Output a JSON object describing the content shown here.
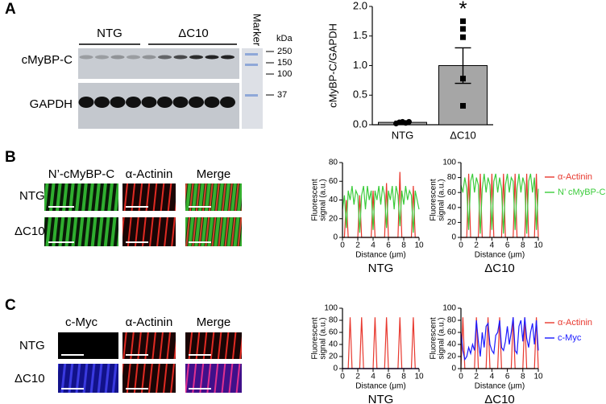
{
  "panel_labels": [
    "A",
    "B",
    "C"
  ],
  "blot": {
    "groups": [
      "NTG",
      "ΔC10"
    ],
    "marker": "Marker",
    "rows": [
      "cMyBP-C",
      "GAPDH"
    ],
    "unit": "kDa",
    "sizes": [
      "250",
      "150",
      "100",
      "37"
    ]
  },
  "image_panels": [
    {
      "columns": [
        "N’-cMyBP-C",
        "α-Actinin",
        "Merge"
      ],
      "rows": [
        "NTG",
        "ΔC10"
      ]
    },
    {
      "columns": [
        "c-Myc",
        "α-Actinin",
        "Merge"
      ],
      "rows": [
        "NTG",
        "ΔC10"
      ]
    }
  ],
  "chart_data": [
    {
      "type": "bar",
      "ylabel": "cMyBP-C/GAPDH",
      "categories": [
        "NTG",
        "ΔC10"
      ],
      "values": [
        0.04,
        1.0
      ],
      "errors": [
        0.02,
        0.3
      ],
      "points": [
        [
          0.02,
          0.04,
          0.05,
          0.03,
          0.05
        ],
        [
          1.75,
          1.62,
          1.48,
          0.78,
          0.32
        ]
      ],
      "markers": [
        "circle",
        "square"
      ],
      "color": "#a6a6a6",
      "ylim": [
        0,
        2
      ],
      "yticks": [
        {
          "value": 0,
          "label": "0.0"
        },
        0.5,
        {
          "value": 1,
          "label": "1.0"
        },
        1.5,
        {
          "value": 2,
          "label": "2.0"
        }
      ],
      "annotation": "*"
    },
    {
      "type": "line",
      "xlabel": "Distance (μm)",
      "ylabel": [
        "Fluorescent",
        "signal (a.u.)"
      ],
      "caption": "NTG",
      "legend": false,
      "x": [
        0,
        0.25,
        0.5,
        0.75,
        1,
        1.25,
        1.5,
        1.75,
        2,
        2.25,
        2.5,
        2.75,
        3,
        3.25,
        3.5,
        3.75,
        4,
        4.25,
        4.5,
        4.75,
        5,
        5.25,
        5.5,
        5.75,
        6,
        6.25,
        6.5,
        6.75,
        7,
        7.25,
        7.5,
        7.75,
        8,
        8.25,
        8.5,
        8.75,
        9,
        9.25,
        9.5,
        9.75,
        10
      ],
      "xlim": [
        0,
        10
      ],
      "xticks": [
        0,
        2,
        4,
        6,
        8,
        10
      ],
      "ylim": [
        0,
        80
      ],
      "yticks": [
        0,
        20,
        40,
        60,
        80
      ],
      "series": [
        {
          "color": "#e8382e",
          "values": [
            0,
            0,
            40,
            0,
            0,
            0,
            0,
            0,
            0,
            45,
            0,
            0,
            0,
            0,
            0,
            0,
            50,
            0,
            0,
            0,
            0,
            0,
            0,
            58,
            0,
            0,
            0,
            0,
            0,
            0,
            70,
            0,
            0,
            0,
            0,
            0,
            0,
            55,
            0,
            0,
            0
          ]
        },
        {
          "color": "#3ccc3c",
          "values": [
            30,
            45,
            10,
            50,
            40,
            55,
            35,
            50,
            45,
            5,
            45,
            55,
            30,
            55,
            40,
            50,
            8,
            50,
            40,
            55,
            35,
            55,
            45,
            10,
            50,
            40,
            55,
            30,
            55,
            45,
            12,
            50,
            35,
            55,
            40,
            50,
            45,
            5,
            50,
            40,
            30
          ]
        }
      ]
    },
    {
      "type": "line",
      "xlabel": "Distance (μm)",
      "ylabel": [
        "Fluorescent",
        "signal (a.u.)"
      ],
      "caption": "ΔC10",
      "legend": true,
      "x": [
        0,
        0.25,
        0.5,
        0.75,
        1,
        1.25,
        1.5,
        1.75,
        2,
        2.25,
        2.5,
        2.75,
        3,
        3.25,
        3.5,
        3.75,
        4,
        4.25,
        4.5,
        4.75,
        5,
        5.25,
        5.5,
        5.75,
        6,
        6.25,
        6.5,
        6.75,
        7,
        7.25,
        7.5,
        7.75,
        8,
        8.25,
        8.5,
        8.75,
        9,
        9.25,
        9.5,
        9.75,
        10
      ],
      "xlim": [
        0,
        10
      ],
      "xticks": [
        0,
        2,
        4,
        6,
        8,
        10
      ],
      "ylim": [
        0,
        100
      ],
      "yticks": [
        0,
        20,
        40,
        60,
        80,
        100
      ],
      "series": [
        {
          "name": "α-Actinin",
          "color": "#e8382e",
          "values": [
            0,
            0,
            0,
            0,
            85,
            0,
            0,
            0,
            0,
            0,
            85,
            0,
            0,
            0,
            0,
            0,
            85,
            0,
            0,
            0,
            0,
            0,
            85,
            0,
            0,
            0,
            0,
            0,
            85,
            0,
            0,
            0,
            0,
            0,
            85,
            0,
            0,
            0,
            0,
            85,
            0
          ]
        },
        {
          "name": "N’ cMyBP-C",
          "color": "#3ccc3c",
          "values": [
            70,
            60,
            80,
            65,
            10,
            75,
            85,
            60,
            80,
            70,
            5,
            65,
            85,
            60,
            80,
            70,
            10,
            75,
            85,
            60,
            80,
            65,
            5,
            70,
            85,
            60,
            80,
            75,
            10,
            65,
            85,
            60,
            80,
            70,
            5,
            75,
            85,
            60,
            80,
            10,
            65
          ]
        }
      ]
    },
    {
      "type": "line",
      "xlabel": "Distance (μm)",
      "ylabel": [
        "Fluorescent",
        "signal (a.u.)"
      ],
      "caption": "NTG",
      "legend": false,
      "x": [
        0,
        0.25,
        0.5,
        0.75,
        1,
        1.25,
        1.5,
        1.75,
        2,
        2.25,
        2.5,
        2.75,
        3,
        3.25,
        3.5,
        3.75,
        4,
        4.25,
        4.5,
        4.75,
        5,
        5.25,
        5.5,
        5.75,
        6,
        6.25,
        6.5,
        6.75,
        7,
        7.25,
        7.5,
        7.75,
        8,
        8.25,
        8.5,
        8.75,
        9,
        9.25,
        9.5,
        9.75,
        10
      ],
      "xlim": [
        0,
        10
      ],
      "xticks": [
        0,
        2,
        4,
        6,
        8,
        10
      ],
      "ylim": [
        0,
        100
      ],
      "yticks": [
        0,
        20,
        40,
        60,
        80,
        100
      ],
      "series": [
        {
          "color": "#e8382e",
          "values": [
            0,
            0,
            0,
            0,
            85,
            0,
            0,
            0,
            0,
            0,
            85,
            0,
            0,
            0,
            0,
            0,
            0,
            85,
            0,
            0,
            0,
            0,
            0,
            85,
            0,
            0,
            0,
            0,
            0,
            0,
            85,
            0,
            0,
            0,
            0,
            0,
            0,
            85,
            0,
            0,
            0
          ]
        },
        {
          "color": "#1a1aff",
          "values": [
            0,
            0,
            0,
            0,
            0,
            0,
            0,
            0,
            0,
            0,
            0,
            0,
            0,
            0,
            0,
            0,
            0,
            0,
            0,
            0,
            0,
            0,
            0,
            0,
            0,
            0,
            0,
            0,
            0,
            0,
            0,
            0,
            0,
            0,
            0,
            0,
            0,
            0,
            0,
            0,
            0
          ]
        }
      ]
    },
    {
      "type": "line",
      "xlabel": "Distance (μm)",
      "ylabel": [
        "Fluorescent",
        "signal (a.u.)"
      ],
      "caption": "ΔC10",
      "legend": true,
      "x": [
        0,
        0.25,
        0.5,
        0.75,
        1,
        1.25,
        1.5,
        1.75,
        2,
        2.25,
        2.5,
        2.75,
        3,
        3.25,
        3.5,
        3.75,
        4,
        4.25,
        4.5,
        4.75,
        5,
        5.25,
        5.5,
        5.75,
        6,
        6.25,
        6.5,
        6.75,
        7,
        7.25,
        7.5,
        7.75,
        8,
        8.25,
        8.5,
        8.75,
        9,
        9.25,
        9.5,
        9.75,
        10
      ],
      "xlim": [
        0,
        10
      ],
      "xticks": [
        0,
        2,
        4,
        6,
        8,
        10
      ],
      "ylim": [
        0,
        100
      ],
      "yticks": [
        0,
        20,
        40,
        60,
        80,
        100
      ],
      "series": [
        {
          "name": "α-Actinin",
          "color": "#e8382e",
          "values": [
            0,
            85,
            0,
            0,
            0,
            0,
            0,
            0,
            85,
            0,
            0,
            0,
            0,
            0,
            85,
            0,
            0,
            0,
            0,
            0,
            85,
            0,
            0,
            0,
            0,
            0,
            0,
            85,
            0,
            0,
            0,
            0,
            0,
            85,
            0,
            0,
            0,
            0,
            0,
            85,
            0
          ]
        },
        {
          "name": "c-Myc",
          "color": "#1a1aff",
          "values": [
            60,
            30,
            15,
            20,
            35,
            25,
            40,
            30,
            80,
            45,
            20,
            60,
            35,
            70,
            75,
            40,
            30,
            25,
            55,
            60,
            80,
            35,
            30,
            45,
            70,
            40,
            60,
            85,
            30,
            25,
            70,
            80,
            45,
            85,
            50,
            35,
            60,
            75,
            40,
            80,
            30
          ]
        }
      ]
    }
  ]
}
